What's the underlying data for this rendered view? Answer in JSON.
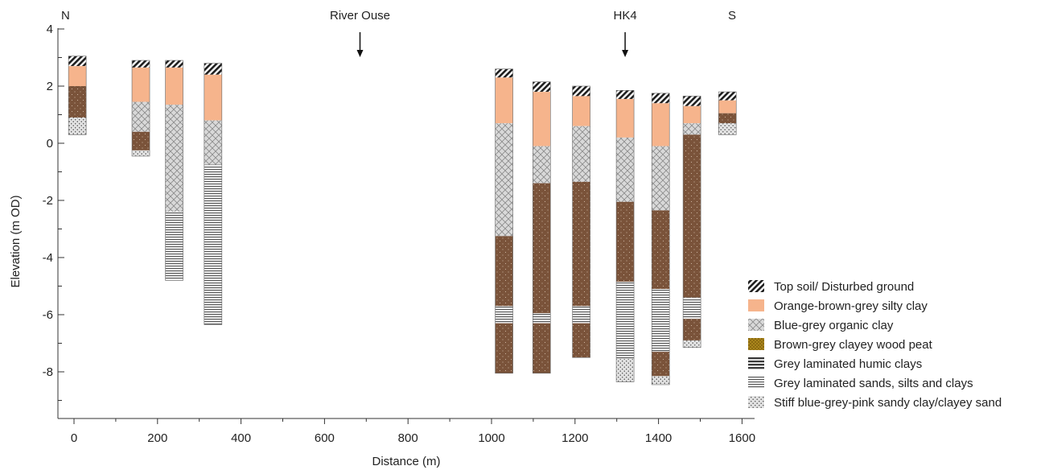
{
  "chart_data": {
    "type": "borehole-cross-section",
    "xlabel": "Distance (m)",
    "ylabel": "Elevation  (m OD)",
    "xlim": [
      -30,
      1630
    ],
    "ylim": [
      -9.5,
      4.3
    ],
    "x_ticks": [
      0,
      200,
      400,
      600,
      800,
      1000,
      1200,
      1400,
      1600
    ],
    "y_ticks": [
      4,
      2,
      0,
      -2,
      -4,
      -6,
      -8
    ],
    "corner_labels": {
      "left": "N",
      "right": "S"
    },
    "annotations": [
      {
        "text": "River Ouse",
        "x": 685
      },
      {
        "text": "HK4",
        "x": 1320
      }
    ],
    "colors": {
      "topsoil": "#1e1e1e",
      "silty_clay": "#f6b48c",
      "organic_clay": "#d4d4d4",
      "wood_peat": "#8b6a10",
      "humic_clays": "#7a533a",
      "laminated_sands": "#ffffff",
      "sandy_clay": "#e6e6e6"
    },
    "legend": [
      {
        "key": "topsoil",
        "label": "Top soil/ Disturbed ground"
      },
      {
        "key": "silty_clay",
        "label": "Orange-brown-grey silty clay"
      },
      {
        "key": "organic_clay",
        "label": "Blue-grey organic clay"
      },
      {
        "key": "wood_peat",
        "label": "Brown-grey clayey wood peat"
      },
      {
        "key": "humic_clays",
        "label": "Grey laminated humic clays"
      },
      {
        "key": "laminated_sands",
        "label": "Grey laminated sands, silts and clays"
      },
      {
        "key": "sandy_clay",
        "label": "Stiff blue-grey-pink sandy clay/clayey sand"
      }
    ],
    "boreholes": [
      {
        "x": 8,
        "layers": [
          {
            "top": 3.05,
            "bottom": 2.7,
            "unit": "topsoil"
          },
          {
            "top": 2.7,
            "bottom": 2.0,
            "unit": "silty_clay"
          },
          {
            "top": 2.0,
            "bottom": 0.9,
            "unit": "humic_clays"
          },
          {
            "top": 0.9,
            "bottom": 0.3,
            "unit": "sandy_clay"
          }
        ]
      },
      {
        "x": 160,
        "layers": [
          {
            "top": 2.9,
            "bottom": 2.65,
            "unit": "topsoil"
          },
          {
            "top": 2.65,
            "bottom": 1.45,
            "unit": "silty_clay"
          },
          {
            "top": 1.45,
            "bottom": 0.4,
            "unit": "organic_clay"
          },
          {
            "top": 0.4,
            "bottom": -0.25,
            "unit": "humic_clays"
          },
          {
            "top": -0.25,
            "bottom": -0.45,
            "unit": "sandy_clay"
          }
        ]
      },
      {
        "x": 240,
        "layers": [
          {
            "top": 2.9,
            "bottom": 2.65,
            "unit": "topsoil"
          },
          {
            "top": 2.65,
            "bottom": 1.35,
            "unit": "silty_clay"
          },
          {
            "top": 1.35,
            "bottom": -2.4,
            "unit": "organic_clay"
          },
          {
            "top": -2.4,
            "bottom": -4.8,
            "unit": "laminated_sands"
          }
        ]
      },
      {
        "x": 333,
        "layers": [
          {
            "top": 2.8,
            "bottom": 2.4,
            "unit": "topsoil"
          },
          {
            "top": 2.4,
            "bottom": 0.8,
            "unit": "silty_clay"
          },
          {
            "top": 0.8,
            "bottom": -0.75,
            "unit": "organic_clay"
          },
          {
            "top": -0.75,
            "bottom": -6.35,
            "unit": "laminated_sands"
          }
        ]
      },
      {
        "x": 1030,
        "layers": [
          {
            "top": 2.6,
            "bottom": 2.3,
            "unit": "topsoil"
          },
          {
            "top": 2.3,
            "bottom": 0.7,
            "unit": "silty_clay"
          },
          {
            "top": 0.7,
            "bottom": -3.25,
            "unit": "organic_clay"
          },
          {
            "top": -3.25,
            "bottom": -5.7,
            "unit": "humic_clays"
          },
          {
            "top": -5.7,
            "bottom": -6.3,
            "unit": "laminated_sands"
          },
          {
            "top": -6.3,
            "bottom": -8.05,
            "unit": "humic_clays"
          }
        ]
      },
      {
        "x": 1120,
        "layers": [
          {
            "top": 2.15,
            "bottom": 1.8,
            "unit": "topsoil"
          },
          {
            "top": 1.8,
            "bottom": -0.1,
            "unit": "silty_clay"
          },
          {
            "top": -0.1,
            "bottom": -1.4,
            "unit": "organic_clay"
          },
          {
            "top": -1.4,
            "bottom": -5.95,
            "unit": "humic_clays"
          },
          {
            "top": -5.95,
            "bottom": -6.3,
            "unit": "laminated_sands"
          },
          {
            "top": -6.3,
            "bottom": -8.05,
            "unit": "humic_clays"
          }
        ]
      },
      {
        "x": 1215,
        "layers": [
          {
            "top": 2.0,
            "bottom": 1.65,
            "unit": "topsoil"
          },
          {
            "top": 1.65,
            "bottom": 0.6,
            "unit": "silty_clay"
          },
          {
            "top": 0.6,
            "bottom": -1.35,
            "unit": "organic_clay"
          },
          {
            "top": -1.35,
            "bottom": -5.7,
            "unit": "humic_clays"
          },
          {
            "top": -5.7,
            "bottom": -6.3,
            "unit": "laminated_sands"
          },
          {
            "top": -6.3,
            "bottom": -7.5,
            "unit": "humic_clays"
          }
        ]
      },
      {
        "x": 1320,
        "layers": [
          {
            "top": 1.85,
            "bottom": 1.55,
            "unit": "topsoil"
          },
          {
            "top": 1.55,
            "bottom": 0.2,
            "unit": "silty_clay"
          },
          {
            "top": 0.2,
            "bottom": -2.05,
            "unit": "organic_clay"
          },
          {
            "top": -2.05,
            "bottom": -4.85,
            "unit": "humic_clays"
          },
          {
            "top": -4.85,
            "bottom": -7.55,
            "unit": "laminated_sands"
          },
          {
            "top": -7.55,
            "bottom": -8.35,
            "unit": "sandy_clay"
          }
        ]
      },
      {
        "x": 1405,
        "layers": [
          {
            "top": 1.75,
            "bottom": 1.4,
            "unit": "topsoil"
          },
          {
            "top": 1.4,
            "bottom": -0.1,
            "unit": "silty_clay"
          },
          {
            "top": -0.1,
            "bottom": -2.35,
            "unit": "organic_clay"
          },
          {
            "top": -2.35,
            "bottom": -5.1,
            "unit": "humic_clays"
          },
          {
            "top": -5.1,
            "bottom": -7.3,
            "unit": "laminated_sands"
          },
          {
            "top": -7.3,
            "bottom": -8.15,
            "unit": "humic_clays"
          },
          {
            "top": -8.15,
            "bottom": -8.45,
            "unit": "sandy_clay"
          }
        ]
      },
      {
        "x": 1480,
        "layers": [
          {
            "top": 1.65,
            "bottom": 1.3,
            "unit": "topsoil"
          },
          {
            "top": 1.3,
            "bottom": 0.7,
            "unit": "silty_clay"
          },
          {
            "top": 0.7,
            "bottom": 0.3,
            "unit": "organic_clay"
          },
          {
            "top": 0.3,
            "bottom": -5.4,
            "unit": "humic_clays"
          },
          {
            "top": -5.4,
            "bottom": -6.15,
            "unit": "laminated_sands"
          },
          {
            "top": -6.15,
            "bottom": -6.9,
            "unit": "humic_clays"
          },
          {
            "top": -6.9,
            "bottom": -7.15,
            "unit": "sandy_clay"
          }
        ]
      },
      {
        "x": 1565,
        "layers": [
          {
            "top": 1.8,
            "bottom": 1.5,
            "unit": "topsoil"
          },
          {
            "top": 1.5,
            "bottom": 1.05,
            "unit": "silty_clay"
          },
          {
            "top": 1.05,
            "bottom": 0.7,
            "unit": "humic_clays"
          },
          {
            "top": 0.7,
            "bottom": 0.3,
            "unit": "sandy_clay"
          }
        ]
      }
    ]
  }
}
